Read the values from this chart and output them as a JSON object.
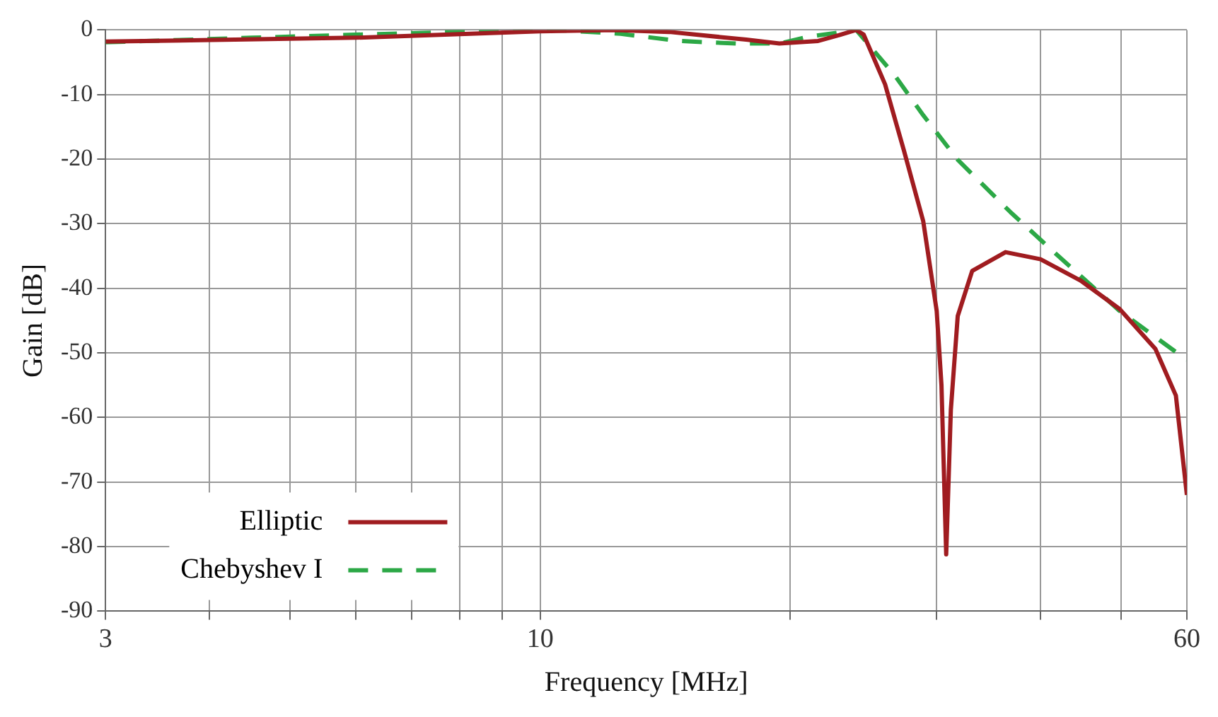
{
  "chart_data": {
    "type": "line",
    "xlabel": "Frequency [MHz]",
    "ylabel": "Gain [dB]",
    "log": "x",
    "xlim": [
      3,
      60
    ],
    "ylim": [
      -90,
      0
    ],
    "xticks": [
      3,
      {
        "value": 4,
        "label": null
      },
      {
        "value": 5,
        "label": null
      },
      {
        "value": 6,
        "label": null
      },
      {
        "value": 7,
        "label": null
      },
      {
        "value": 8,
        "label": null
      },
      {
        "value": 9,
        "label": null
      },
      10,
      {
        "value": 20,
        "label": null
      },
      {
        "value": 30,
        "label": null
      },
      {
        "value": 40,
        "label": null
      },
      {
        "value": 50,
        "label": null
      },
      60
    ],
    "yticks": [
      -90,
      -80,
      -70,
      -60,
      -50,
      -40,
      -30,
      -20,
      -10,
      0
    ],
    "grid": true,
    "legend": "bottom left",
    "marker": "none",
    "series": [
      {
        "name": "Elliptic",
        "color": "#a01c20",
        "line_style": "solid",
        "x": [
          3,
          6,
          10,
          12.3,
          14.3,
          17.7,
          19.4,
          21.6,
          22.9,
          24,
          24.5,
          26,
          27.4,
          28.9,
          30,
          30.4,
          30.8,
          31.2,
          31.8,
          33.1,
          36.3,
          40,
          44.7,
          49.8,
          55,
          58.2,
          60
        ],
        "values": [
          -1.8,
          -1.2,
          -0.2,
          0,
          -0.3,
          -1.5,
          -2.1,
          -1.7,
          -0.8,
          0,
          -0.7,
          -8.4,
          -18.7,
          -29.6,
          -43.5,
          -55,
          -81.2,
          -58.8,
          -44.3,
          -37.3,
          -34.4,
          -35.5,
          -38.8,
          -43.2,
          -49.4,
          -56.6,
          -72
        ]
      },
      {
        "name": "Chebyshev I",
        "color": "#2ca846",
        "line_style": "dashed",
        "x": [
          3,
          4.5,
          6.5,
          9.7,
          10.8,
          12.5,
          14.7,
          17.2,
          19.4,
          20.9,
          24,
          26.7,
          28.9,
          31.8,
          36.8,
          41.2,
          49.8,
          60
        ],
        "values": [
          -1.9,
          -1.2,
          -0.6,
          0,
          -0.1,
          -0.6,
          -1.7,
          -2.1,
          -2.1,
          -1.1,
          0,
          -7,
          -13.2,
          -20.1,
          -28.2,
          -34,
          -43.5,
          -51.1
        ]
      }
    ]
  }
}
